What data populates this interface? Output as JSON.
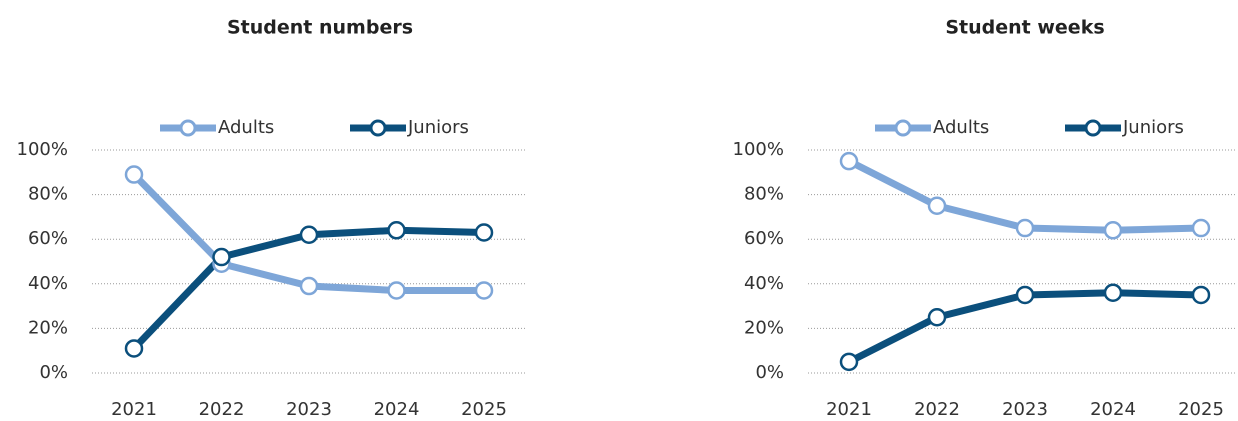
{
  "chart_data": [
    {
      "type": "line",
      "title": "Student numbers",
      "categories": [
        "2021",
        "2022",
        "2023",
        "2024",
        "2025"
      ],
      "series": [
        {
          "name": "Adults",
          "color": "#7ea6d8",
          "values": [
            89,
            49,
            39,
            37,
            37
          ]
        },
        {
          "name": "Juniors",
          "color": "#0b4f7c",
          "values": [
            11,
            52,
            62,
            64,
            63
          ]
        }
      ],
      "ylim": [
        0,
        100
      ],
      "yticks": [
        {
          "value": 0,
          "label": "0%"
        },
        {
          "value": 20,
          "label": "20%"
        },
        {
          "value": 40,
          "label": "40%"
        },
        {
          "value": 60,
          "label": "60%"
        },
        {
          "value": 80,
          "label": "80%"
        },
        {
          "value": 100,
          "label": "100%"
        }
      ],
      "grid": true,
      "legend": "top"
    },
    {
      "type": "line",
      "title": "Student weeks",
      "categories": [
        "2021",
        "2022",
        "2023",
        "2024",
        "2025"
      ],
      "series": [
        {
          "name": "Adults",
          "color": "#7ea6d8",
          "values": [
            95,
            75,
            65,
            64,
            65
          ]
        },
        {
          "name": "Juniors",
          "color": "#0b4f7c",
          "values": [
            5,
            25,
            35,
            36,
            35
          ]
        }
      ],
      "ylim": [
        0,
        100
      ],
      "yticks": [
        {
          "value": 0,
          "label": "0%"
        },
        {
          "value": 20,
          "label": "20%"
        },
        {
          "value": 40,
          "label": "40%"
        },
        {
          "value": 60,
          "label": "60%"
        },
        {
          "value": 80,
          "label": "80%"
        },
        {
          "value": 100,
          "label": "100%"
        }
      ],
      "grid": true,
      "legend": "top"
    }
  ]
}
